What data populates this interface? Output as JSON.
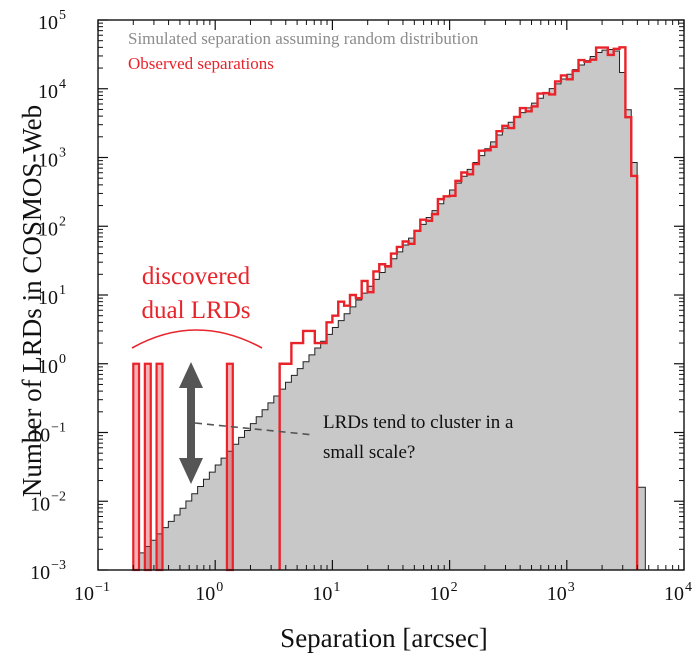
{
  "chart_data": {
    "type": "histogram",
    "xlabel": "Separation [arcsec]",
    "ylabel": "Number of LRDs in COSMOS-Web",
    "xscale": "log",
    "yscale": "log",
    "xlim": [
      0.1,
      10000
    ],
    "ylim": [
      0.001,
      100000
    ],
    "x_ticks": [
      {
        "base": "10",
        "exp": "−1",
        "value": 0.1
      },
      {
        "base": "10",
        "exp": "0",
        "value": 1
      },
      {
        "base": "10",
        "exp": "1",
        "value": 10
      },
      {
        "base": "10",
        "exp": "2",
        "value": 100
      },
      {
        "base": "10",
        "exp": "3",
        "value": 1000
      },
      {
        "base": "10",
        "exp": "4",
        "value": 10000
      }
    ],
    "y_ticks": [
      {
        "base": "10",
        "exp": "−3",
        "value": 0.001
      },
      {
        "base": "10",
        "exp": "−2",
        "value": 0.01
      },
      {
        "base": "10",
        "exp": "−1",
        "value": 0.1
      },
      {
        "base": "10",
        "exp": "0",
        "value": 1
      },
      {
        "base": "10",
        "exp": "1",
        "value": 10
      },
      {
        "base": "10",
        "exp": "2",
        "value": 100
      },
      {
        "base": "10",
        "exp": "3",
        "value": 1000
      },
      {
        "base": "10",
        "exp": "4",
        "value": 10000
      },
      {
        "base": "10",
        "exp": "5",
        "value": 100000
      }
    ],
    "legend": {
      "placement": "top-left",
      "entries": [
        {
          "label": "Simulated separation assuming random distribution",
          "color": "#8c8c8c"
        },
        {
          "label": "Observed separations",
          "color": "#e8232a"
        }
      ]
    },
    "series": [
      {
        "name": "Simulated separation assuming random distribution",
        "style": "filled-step",
        "fill": "#c8c8c8",
        "edge": "#222222",
        "bin_edges_log10": [
          -0.65,
          4.0
        ],
        "bin_width_log10": 0.05,
        "points": [
          [
            -0.65,
            0.0016
          ],
          [
            -0.3,
            0.007
          ],
          [
            0,
            0.03
          ],
          [
            0.3,
            0.12
          ],
          [
            0.6,
            0.48
          ],
          [
            1.0,
            3.0
          ],
          [
            1.5,
            30
          ],
          [
            2.0,
            300
          ],
          [
            2.5,
            3000
          ],
          [
            3.0,
            15000
          ],
          [
            3.15,
            24000
          ],
          [
            3.3,
            36000
          ],
          [
            3.42,
            38000
          ],
          [
            3.5,
            12000
          ],
          [
            3.6,
            350
          ],
          [
            3.62,
            0.016
          ],
          [
            3.7,
            0.016
          ]
        ]
      },
      {
        "name": "Observed separations",
        "style": "step",
        "color": "#e8232a",
        "bins": [
          {
            "x0": 0.2,
            "x1": 0.224,
            "y": 1
          },
          {
            "x0": 0.224,
            "x1": 0.251,
            "y": 0.0016
          },
          {
            "x0": 0.251,
            "x1": 0.282,
            "y": 1
          },
          {
            "x0": 0.282,
            "x1": 0.316,
            "y": 0.0016
          },
          {
            "x0": 0.316,
            "x1": 0.355,
            "y": 1
          },
          {
            "x0": 1.259,
            "x1": 1.413,
            "y": 1
          },
          {
            "x0": 3.548,
            "x1": 3.981,
            "y": 1
          },
          {
            "x0": 3.981,
            "x1": 4.467,
            "y": 1
          },
          {
            "x0": 4.467,
            "x1": 5.012,
            "y": 2
          },
          {
            "x0": 5.012,
            "x1": 5.623,
            "y": 2
          },
          {
            "x0": 5.623,
            "x1": 6.31,
            "y": 3
          },
          {
            "x0": 6.31,
            "x1": 7.079,
            "y": 3
          },
          {
            "x0": 7.079,
            "x1": 7.943,
            "y": 2
          },
          {
            "x0": 7.943,
            "x1": 8.913,
            "y": 2
          },
          {
            "x0": 8.913,
            "x1": 10.0,
            "y": 4
          },
          {
            "x0": 10.0,
            "x1": 11.22,
            "y": 5
          },
          {
            "x0": 11.22,
            "x1": 12.59,
            "y": 8
          },
          {
            "x0": 12.59,
            "x1": 14.13,
            "y": 7
          },
          {
            "x0": 14.13,
            "x1": 15.85,
            "y": 10
          },
          {
            "x0": 15.85,
            "x1": 17.78,
            "y": 9
          },
          {
            "x0": 17.78,
            "x1": 19.95,
            "y": 16
          },
          {
            "x0": 19.95,
            "x1": 22.39,
            "y": 11
          },
          {
            "x0": 22.39,
            "x1": 25.12,
            "y": 22
          },
          {
            "x0": 25.12,
            "x1": 28.18,
            "y": 28
          },
          {
            "x0": 28.18,
            "x1": 31.62,
            "y": 26
          },
          {
            "x0": 31.62,
            "x1": 35.48,
            "y": 40
          },
          {
            "x0": 35.48,
            "x1": 39.81,
            "y": 50
          },
          {
            "x0": 39.81,
            "x1": 44.67,
            "y": 60
          }
        ],
        "curve": [
          [
            44.67,
            60
          ],
          [
            100,
            300
          ],
          [
            316,
            3000
          ],
          [
            1000,
            15000
          ],
          [
            1413,
            24000
          ],
          [
            1778,
            34000
          ],
          [
            2239,
            38000
          ],
          [
            2818,
            37000
          ],
          [
            3162,
            32000
          ],
          [
            3548,
            600
          ],
          [
            3981,
            600
          ]
        ],
        "last_drop_x": 3981
      }
    ],
    "annotations": [
      {
        "text_lines": [
          "discovered",
          "dual LRDs"
        ],
        "color": "#e8232a"
      },
      {
        "text_lines": [
          "LRDs tend to cluster in a",
          "small scale?"
        ],
        "color": "#111111"
      }
    ]
  }
}
